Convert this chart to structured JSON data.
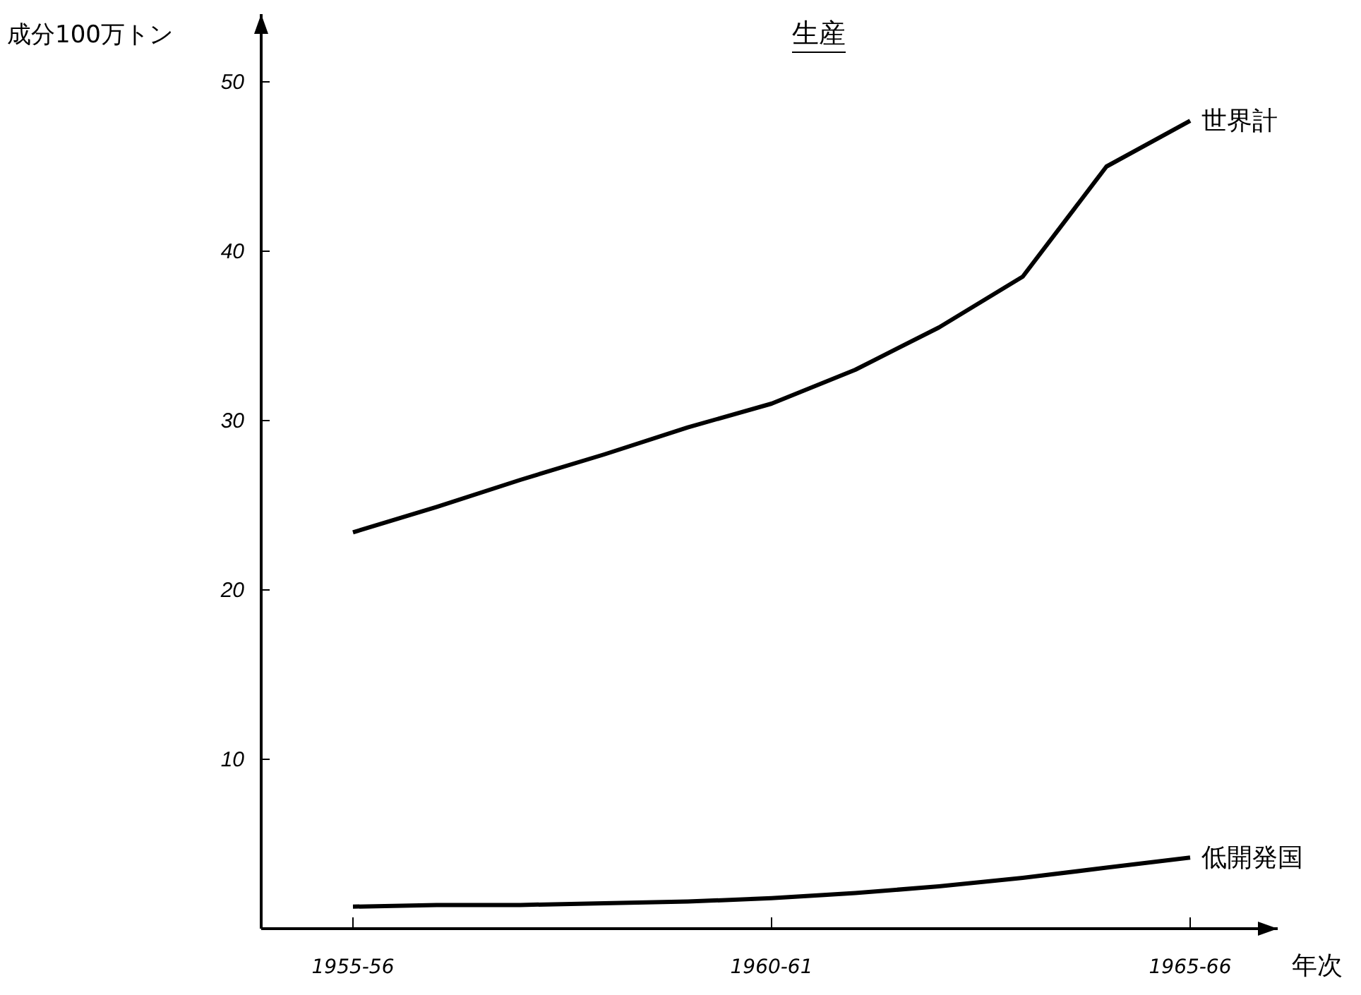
{
  "chart_data": {
    "type": "line",
    "title": "生産",
    "ylabel": "成分100万トン",
    "xlabel": "年次",
    "categories": [
      "1955-56",
      null,
      null,
      null,
      null,
      "1960-61",
      null,
      null,
      null,
      null,
      "1965-66"
    ],
    "ylim": [
      0,
      54
    ],
    "yticks": [
      10,
      20,
      30,
      40,
      50
    ],
    "grid": false,
    "legend": false,
    "marker": "none",
    "line_style": "solid",
    "series": [
      {
        "name": "世界計",
        "color": "#000000",
        "values": [
          23.4,
          24.9,
          26.5,
          28,
          29.6,
          31,
          33,
          35.5,
          38.5,
          45,
          47.7
        ]
      },
      {
        "name": "低開発国",
        "color": "#000000",
        "values": [
          1.3,
          1.4,
          1.4,
          1.5,
          1.6,
          1.8,
          2.1,
          2.5,
          3,
          3.6,
          4.2
        ]
      }
    ]
  }
}
